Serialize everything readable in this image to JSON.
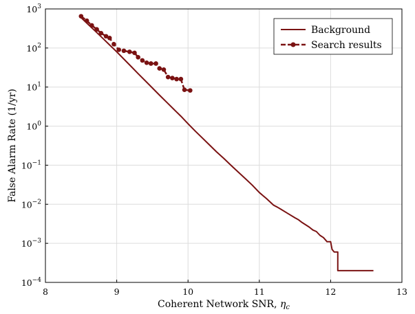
{
  "chart_data": {
    "type": "line",
    "title": "",
    "xlabel": "Coherent Network SNR, ",
    "xlabel_symbol": "η",
    "xlabel_subscript": "c",
    "ylabel": "False Alarm Rate (1/yr)",
    "xlim": [
      8,
      13
    ],
    "ylim_exponents": [
      -4,
      3
    ],
    "yscale": "log",
    "grid": true,
    "legend_position": "top-right",
    "x_ticks": [
      8,
      9,
      10,
      11,
      12,
      13
    ],
    "y_ticks": [
      {
        "base": "10",
        "exp": "3"
      },
      {
        "base": "10",
        "exp": "2"
      },
      {
        "base": "10",
        "exp": "1"
      },
      {
        "base": "10",
        "exp": "0"
      },
      {
        "base": "10",
        "exp": "−1"
      },
      {
        "base": "10",
        "exp": "−2"
      },
      {
        "base": "10",
        "exp": "−3"
      },
      {
        "base": "10",
        "exp": "−4"
      }
    ],
    "y_tick_values": [
      1000,
      100,
      10,
      1,
      0.1,
      0.01,
      0.001,
      0.0001
    ],
    "series": [
      {
        "name": "Background",
        "color": "#7a1212",
        "style": "line",
        "x": [
          8.5,
          8.6,
          8.7,
          8.8,
          8.9,
          9.0,
          9.1,
          9.2,
          9.3,
          9.4,
          9.5,
          9.6,
          9.7,
          9.8,
          9.9,
          10.0,
          10.1,
          10.2,
          10.3,
          10.4,
          10.5,
          10.6,
          10.7,
          10.8,
          10.9,
          11.0,
          11.1,
          11.2,
          11.25,
          11.3,
          11.4,
          11.5,
          11.55,
          11.6,
          11.7,
          11.75,
          11.8,
          11.85,
          11.9,
          11.95,
          12.0,
          12.02,
          12.05,
          12.1,
          12.1,
          12.6
        ],
        "y": [
          600,
          400,
          270,
          180,
          120,
          80,
          52,
          34,
          22,
          14.5,
          9.5,
          6.2,
          4.1,
          2.7,
          1.8,
          1.15,
          0.75,
          0.5,
          0.33,
          0.22,
          0.15,
          0.1,
          0.068,
          0.046,
          0.031,
          0.02,
          0.014,
          0.0095,
          0.0085,
          0.0075,
          0.0058,
          0.0045,
          0.004,
          0.0034,
          0.0026,
          0.0022,
          0.002,
          0.0016,
          0.0014,
          0.0011,
          0.0011,
          0.0007,
          0.0006,
          0.0006,
          0.0002,
          0.0002
        ]
      },
      {
        "name": "Search results",
        "color": "#7a1212",
        "style": "dashed-markers",
        "x": [
          8.5,
          8.58,
          8.65,
          8.72,
          8.78,
          8.85,
          8.9,
          8.96,
          9.03,
          9.1,
          9.18,
          9.25,
          9.3,
          9.36,
          9.42,
          9.48,
          9.55,
          9.6,
          9.66,
          9.72,
          9.78,
          9.84,
          9.9,
          9.95,
          10.03
        ],
        "y": [
          650,
          500,
          380,
          300,
          240,
          200,
          180,
          125,
          90,
          85,
          80,
          75,
          58,
          48,
          42,
          40,
          40,
          30,
          28,
          18,
          17,
          16,
          16,
          8.5,
          8.2
        ]
      }
    ]
  }
}
